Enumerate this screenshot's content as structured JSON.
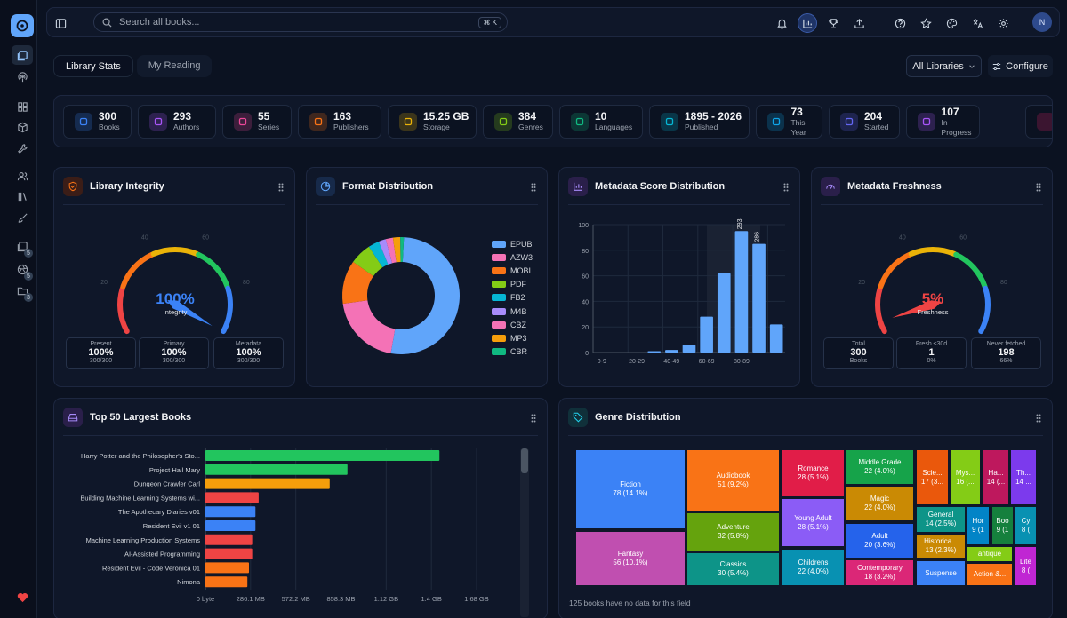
{
  "search": {
    "placeholder": "Search all books...",
    "shortcut": "⌘ K"
  },
  "user": {
    "initial": "N"
  },
  "sidebar": {
    "badges": [
      "5",
      "5",
      "3"
    ]
  },
  "tabs": [
    {
      "label": "Library Stats",
      "active": true
    },
    {
      "label": "My Reading",
      "active": false
    }
  ],
  "library_filter": {
    "selected": "All Libraries"
  },
  "configure_label": "Configure",
  "stats": [
    {
      "value": "300",
      "label": "Books",
      "color": "#3b82f6"
    },
    {
      "value": "293",
      "label": "Authors",
      "color": "#a855f7"
    },
    {
      "value": "55",
      "label": "Series",
      "color": "#ec4899"
    },
    {
      "value": "163",
      "label": "Publishers",
      "color": "#f97316"
    },
    {
      "value": "15.25 GB",
      "label": "Storage",
      "color": "#eab308"
    },
    {
      "value": "384",
      "label": "Genres",
      "color": "#84cc16"
    },
    {
      "value": "10",
      "label": "Languages",
      "color": "#10b981"
    },
    {
      "value": "1895 - 2026",
      "label": "Published",
      "color": "#06b6d4"
    },
    {
      "value": "73",
      "label": "This Year",
      "color": "#0ea5e9"
    },
    {
      "value": "204",
      "label": "Started",
      "color": "#6366f1"
    },
    {
      "value": "107",
      "label": "In Progress",
      "color": "#a855f7"
    }
  ],
  "integrity": {
    "title": "Library Integrity",
    "percent": 100,
    "value_label": "100%",
    "caption": "Integrity",
    "ticks": [
      "0",
      "20",
      "40",
      "60",
      "80",
      "100"
    ],
    "boxes": [
      {
        "label": "Present",
        "value": "100%",
        "sub": "300/300"
      },
      {
        "label": "Primary",
        "value": "100%",
        "sub": "300/300"
      },
      {
        "label": "Metadata",
        "value": "100%",
        "sub": "300/300"
      }
    ]
  },
  "format": {
    "title": "Format Distribution",
    "labels": [
      "EPUB",
      "AZW3",
      "MOBI",
      "PDF",
      "FB2",
      "M4B",
      "CBZ",
      "MP3",
      "CBR"
    ],
    "colors": [
      "#60a5fa",
      "#f472b6",
      "#f97316",
      "#84cc16",
      "#06b6d4",
      "#a78bfa",
      "#f472b6",
      "#f59e0b",
      "#10b981"
    ],
    "values": [
      52,
      20,
      12,
      6,
      3,
      2,
      2,
      2,
      1
    ]
  },
  "metadata_score": {
    "title": "Metadata Score Distribution",
    "yticks": [
      "0",
      "20",
      "40",
      "60",
      "80",
      "100"
    ],
    "xlabels": [
      "0-9",
      "20-29",
      "40-49",
      "60-69",
      "80-89"
    ],
    "values": [
      0,
      0,
      0,
      1,
      2,
      6,
      28,
      62,
      95,
      85,
      22
    ],
    "annotations": [
      "293",
      "286"
    ],
    "bar_color": "#60a5fa"
  },
  "freshness": {
    "title": "Metadata Freshness",
    "percent": 5,
    "value_label": "5%",
    "caption": "Freshness",
    "ticks": [
      "0",
      "20",
      "40",
      "60",
      "80",
      "100"
    ],
    "boxes": [
      {
        "label": "Total",
        "value": "300",
        "sub": "Books"
      },
      {
        "label": "Fresh ≤30d",
        "value": "1",
        "sub": "0%"
      },
      {
        "label": "Never fetched",
        "value": "198",
        "sub": "66%"
      }
    ]
  },
  "largest": {
    "title": "Top 50 Largest Books",
    "books": [
      {
        "name": "Harry Potter and the Philosopher's Sto...",
        "gb": 1.45,
        "color": "#22c55e"
      },
      {
        "name": "Project Hail Mary",
        "gb": 0.88,
        "color": "#22c55e"
      },
      {
        "name": "Dungeon Crawler Carl",
        "gb": 0.77,
        "color": "#f59e0b"
      },
      {
        "name": "Building Machine Learning Systems wi...",
        "gb": 0.33,
        "color": "#ef4444"
      },
      {
        "name": "The Apothecary Diaries v01",
        "gb": 0.31,
        "color": "#3b82f6"
      },
      {
        "name": "Resident Evil v1 01",
        "gb": 0.31,
        "color": "#3b82f6"
      },
      {
        "name": "Machine Learning Production Systems",
        "gb": 0.29,
        "color": "#ef4444"
      },
      {
        "name": "AI-Assisted Programming",
        "gb": 0.29,
        "color": "#ef4444"
      },
      {
        "name": "Resident Evil - Code Veronica 01",
        "gb": 0.27,
        "color": "#f97316"
      },
      {
        "name": "Nimona",
        "gb": 0.26,
        "color": "#f97316"
      }
    ],
    "xticks": [
      "0 byte",
      "286.1 MB",
      "572.2 MB",
      "858.3 MB",
      "1.12 GB",
      "1.4 GB",
      "1.68 GB"
    ],
    "xmax": 1.68
  },
  "genres": {
    "title": "Genre Distribution",
    "footnote": "125 books have no data for this field",
    "items": [
      {
        "name": "Fiction",
        "value": "78 (14.1%)",
        "color": "#3b82f6"
      },
      {
        "name": "Fantasy",
        "value": "56 (10.1%)",
        "color": "#c04fb0"
      },
      {
        "name": "Audiobook",
        "value": "51 (9.2%)",
        "color": "#f97316"
      },
      {
        "name": "Adventure",
        "value": "32 (5.8%)",
        "color": "#65a30d"
      },
      {
        "name": "Classics",
        "value": "30 (5.4%)",
        "color": "#0d9488"
      },
      {
        "name": "Romance",
        "value": "28 (5.1%)",
        "color": "#e11d48"
      },
      {
        "name": "Young Adult",
        "value": "28 (5.1%)",
        "color": "#8b5cf6"
      },
      {
        "name": "Childrens",
        "value": "22 (4.0%)",
        "color": "#0891b2"
      },
      {
        "name": "Middle Grade",
        "value": "22 (4.0%)",
        "color": "#16a34a"
      },
      {
        "name": "Magic",
        "value": "22 (4.0%)",
        "color": "#ca8a04"
      },
      {
        "name": "Adult",
        "value": "20 (3.6%)",
        "color": "#2563eb"
      },
      {
        "name": "Contemporary",
        "value": "18 (3.2%)",
        "color": "#db2777"
      },
      {
        "name": "Scie...",
        "value": "17 (3...",
        "color": "#ea580c"
      },
      {
        "name": "Mys...",
        "value": "16 (...",
        "color": "#84cc16"
      },
      {
        "name": "Ha...",
        "value": "14 (...",
        "color": "#be185d"
      },
      {
        "name": "Th...",
        "value": "14 ...",
        "color": "#7c3aed"
      },
      {
        "name": "General",
        "value": "14 (2.5%)",
        "color": "#0d9488"
      },
      {
        "name": "Hor",
        "value": "9 (1",
        "color": "#0284c7"
      },
      {
        "name": "Boo",
        "value": "9 (1",
        "color": "#15803d"
      },
      {
        "name": "Cy",
        "value": "8 (",
        "color": "#0891b2"
      },
      {
        "name": "Historica...",
        "value": "13 (2.3%)",
        "color": "#ca8a04"
      },
      {
        "name": "antique",
        "value": "",
        "color": "#84cc16"
      },
      {
        "name": "Lite",
        "value": "8 (",
        "color": "#c026d3"
      },
      {
        "name": "Suspense",
        "value": "",
        "color": "#3b82f6"
      },
      {
        "name": "Action &...",
        "value": "",
        "color": "#f97316"
      }
    ]
  }
}
